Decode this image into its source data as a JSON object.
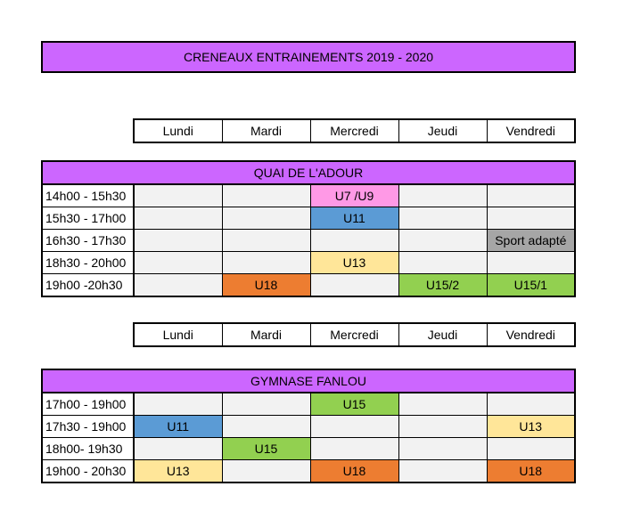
{
  "title": "CRENEAUX ENTRAINEMENTS 2019 - 2020",
  "colors": {
    "title_bg": "#cc66ff",
    "pink": "#ff99e6",
    "blue": "#5b9bd5",
    "yellow": "#ffe699",
    "orange": "#ed7d31",
    "green": "#92d050",
    "gray": "#a6a6a6",
    "empty": "#f2f2f2"
  },
  "days": [
    "Lundi",
    "Mardi",
    "Mercredi",
    "Jeudi",
    "Vendredi"
  ],
  "sections": [
    {
      "venue": "QUAI DE L'ADOUR",
      "rows": [
        {
          "time": "14h00 - 15h30",
          "cells": [
            null,
            null,
            {
              "label": "U7 /U9",
              "color": "pink"
            },
            null,
            null
          ]
        },
        {
          "time": "15h30 - 17h00",
          "cells": [
            null,
            null,
            {
              "label": "U11",
              "color": "blue"
            },
            null,
            null
          ]
        },
        {
          "time": "16h30 - 17h30",
          "cells": [
            null,
            null,
            null,
            null,
            {
              "label": "Sport adapté",
              "color": "gray"
            }
          ]
        },
        {
          "time": "18h30 - 20h00",
          "cells": [
            null,
            null,
            {
              "label": "U13",
              "color": "yellow"
            },
            null,
            null
          ]
        },
        {
          "time": "19h00 -20h30",
          "cells": [
            null,
            {
              "label": "U18",
              "color": "orange"
            },
            null,
            {
              "label": "U15/2",
              "color": "green"
            },
            {
              "label": "U15/1",
              "color": "green"
            }
          ]
        }
      ]
    },
    {
      "venue": "GYMNASE FANLOU",
      "rows": [
        {
          "time": "17h00 - 19h00",
          "cells": [
            null,
            null,
            {
              "label": "U15",
              "color": "green"
            },
            null,
            null
          ]
        },
        {
          "time": "17h30 - 19h00",
          "cells": [
            {
              "label": "U11",
              "color": "blue"
            },
            null,
            null,
            null,
            {
              "label": "U13",
              "color": "yellow"
            }
          ]
        },
        {
          "time": "18h00- 19h30",
          "cells": [
            null,
            {
              "label": "U15",
              "color": "green"
            },
            null,
            null,
            null
          ]
        },
        {
          "time": "19h00 - 20h30",
          "cells": [
            {
              "label": "U13",
              "color": "yellow"
            },
            null,
            {
              "label": "U18",
              "color": "orange"
            },
            null,
            {
              "label": "U18",
              "color": "orange"
            }
          ]
        }
      ]
    }
  ]
}
